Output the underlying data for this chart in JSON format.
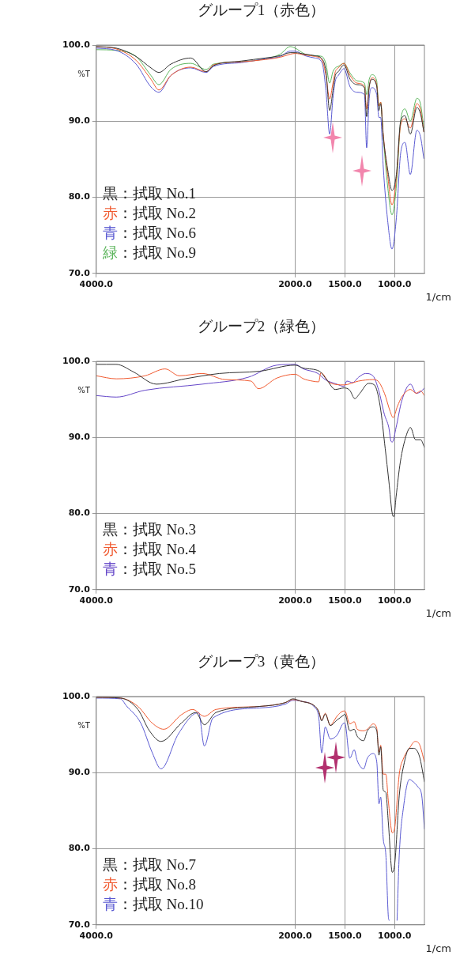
{
  "chart_data": [
    {
      "type": "line",
      "title": "グループ1（赤色）",
      "xlabel": "1/cm",
      "ylabel": "%T",
      "xlim": [
        4000,
        700
      ],
      "xticks": [
        {
          "value": 4000,
          "label": "4000.0"
        },
        {
          "value": 2000,
          "label": "2000.0"
        },
        {
          "value": 1500,
          "label": "1500.0"
        },
        {
          "value": 1000,
          "label": "1000.0"
        }
      ],
      "ylim": [
        70,
        100
      ],
      "yticks": [
        {
          "value": 70,
          "label": "70.0"
        },
        {
          "value": 80,
          "label": "80.0"
        },
        {
          "value": 90,
          "label": "90.0"
        },
        {
          "value": 100,
          "label": "100.0"
        }
      ],
      "grid": true,
      "legend": "bottom left",
      "series": [
        {
          "name": "黒：拭取 No.1",
          "color": "#333333",
          "x": [
            4000,
            3800,
            3600,
            3450,
            3370,
            3250,
            3050,
            2895,
            2820,
            2540,
            2300,
            2150,
            2050,
            2000,
            1900,
            1800,
            1730,
            1690,
            1653,
            1620,
            1596,
            1566,
            1509,
            1447,
            1377,
            1303,
            1281,
            1255,
            1228,
            1180,
            1158,
            1140,
            1114,
            1070,
            1026,
            982,
            939,
            895,
            842,
            776,
            740,
            706
          ],
          "values": [
            99.8,
            99.6,
            98.5,
            97.0,
            96.4,
            97.5,
            98.3,
            96.5,
            97.3,
            97.9,
            98.3,
            98.6,
            99.0,
            99.0,
            98.8,
            98.6,
            98.2,
            96.5,
            91.4,
            94.0,
            96.0,
            96.5,
            97.4,
            95.5,
            94.8,
            94.4,
            90.6,
            94.5,
            95.5,
            94.6,
            91.4,
            92.3,
            88.0,
            83.7,
            80.9,
            83.0,
            90.0,
            90.7,
            88.3,
            91.8,
            91.0,
            88.6
          ]
        },
        {
          "name": "赤：拭取 No.2",
          "color": "#f05a30",
          "x": [
            4000,
            3800,
            3600,
            3450,
            3370,
            3250,
            3050,
            2895,
            2820,
            2540,
            2300,
            2150,
            2050,
            2000,
            1900,
            1800,
            1730,
            1690,
            1653,
            1620,
            1596,
            1566,
            1509,
            1447,
            1377,
            1303,
            1281,
            1255,
            1228,
            1180,
            1158,
            1140,
            1114,
            1070,
            1026,
            982,
            939,
            895,
            842,
            776,
            740,
            706
          ],
          "values": [
            99.8,
            99.5,
            98.0,
            95.5,
            94.1,
            96.0,
            97.1,
            96.5,
            97.4,
            97.8,
            98.1,
            98.4,
            98.8,
            98.9,
            98.7,
            98.5,
            98.0,
            96.0,
            92.9,
            95.0,
            96.5,
            97.0,
            97.6,
            96.0,
            95.0,
            94.6,
            91.6,
            94.6,
            95.7,
            94.8,
            92.0,
            92.5,
            88.3,
            83.0,
            79.0,
            82.5,
            89.5,
            90.3,
            89.1,
            92.3,
            91.5,
            88.6
          ]
        },
        {
          "name": "青：拭取 No.6",
          "color": "#5a5ad2",
          "x": [
            4000,
            3800,
            3600,
            3450,
            3370,
            3250,
            3050,
            2895,
            2820,
            2540,
            2300,
            2150,
            2050,
            2000,
            1900,
            1800,
            1730,
            1690,
            1653,
            1620,
            1596,
            1566,
            1509,
            1447,
            1377,
            1303,
            1281,
            1255,
            1228,
            1180,
            1158,
            1140,
            1114,
            1070,
            1026,
            982,
            939,
            895,
            842,
            776,
            740,
            706
          ],
          "values": [
            99.6,
            99.3,
            97.5,
            94.5,
            93.8,
            96.0,
            97.0,
            96.4,
            97.2,
            97.7,
            98.2,
            98.5,
            99.2,
            99.2,
            98.6,
            98.3,
            97.7,
            94.0,
            88.3,
            93.0,
            95.3,
            96.0,
            96.9,
            94.5,
            93.8,
            93.5,
            86.5,
            93.0,
            94.4,
            93.5,
            90.5,
            90.5,
            84.0,
            77.0,
            73.2,
            77.3,
            85.8,
            87.2,
            83.0,
            88.8,
            88.0,
            85.1
          ]
        },
        {
          "name": "緑：拭取 No.9",
          "color": "#5ab45a",
          "x": [
            4000,
            3800,
            3600,
            3450,
            3370,
            3250,
            3050,
            2895,
            2820,
            2540,
            2300,
            2150,
            2050,
            2000,
            1900,
            1800,
            1730,
            1690,
            1653,
            1620,
            1596,
            1566,
            1509,
            1447,
            1377,
            1303,
            1281,
            1255,
            1228,
            1180,
            1158,
            1140,
            1114,
            1070,
            1026,
            982,
            939,
            895,
            842,
            776,
            740,
            706
          ],
          "values": [
            99.4,
            99.3,
            98.5,
            96.0,
            94.8,
            96.8,
            97.6,
            96.8,
            97.5,
            97.8,
            98.2,
            98.8,
            99.8,
            99.6,
            98.8,
            98.6,
            98.5,
            97.5,
            95.0,
            96.5,
            97.0,
            97.2,
            97.6,
            96.3,
            95.3,
            95.0,
            93.5,
            95.5,
            96.1,
            95.3,
            92.0,
            92.5,
            88.0,
            81.5,
            77.7,
            81.5,
            90.0,
            91.6,
            90.0,
            93.0,
            92.3,
            89.1
          ]
        }
      ]
    },
    {
      "type": "line",
      "title": "グループ2（緑色）",
      "xlabel": "1/cm",
      "ylabel": "%T",
      "xlim": [
        4000,
        700
      ],
      "xticks": [
        {
          "value": 4000,
          "label": "4000.0"
        },
        {
          "value": 2000,
          "label": "2000.0"
        },
        {
          "value": 1500,
          "label": "1500.0"
        },
        {
          "value": 1000,
          "label": "1000.0"
        }
      ],
      "ylim": [
        70,
        100
      ],
      "yticks": [
        {
          "value": 70,
          "label": "70.0"
        },
        {
          "value": 80,
          "label": "80.0"
        },
        {
          "value": 90,
          "label": "90.0"
        },
        {
          "value": 100,
          "label": "100.0"
        }
      ],
      "grid": true,
      "legend": "bottom left",
      "series": [
        {
          "name": "黒：拭取 No.3",
          "color": "#333333",
          "x": [
            4000,
            3800,
            3625,
            3395,
            3107,
            2761,
            2357,
            2000,
            1916,
            1756,
            1683,
            1596,
            1509,
            1451,
            1400,
            1349,
            1262,
            1203,
            1145,
            1094,
            1058,
            1022,
            1007,
            985,
            942,
            884,
            840,
            789,
            738,
            700
          ],
          "values": [
            99.6,
            99.6,
            98.6,
            97.0,
            97.7,
            98.4,
            98.7,
            99.5,
            99.1,
            98.7,
            97.6,
            96.3,
            96.5,
            96.2,
            95.1,
            95.8,
            97.1,
            96.9,
            94.1,
            88.5,
            84.3,
            79.9,
            79.6,
            82.2,
            86.8,
            90.2,
            91.3,
            89.7,
            89.7,
            88.7
          ]
        },
        {
          "name": "赤：拭取 No.4",
          "color": "#f05a30",
          "x": [
            4000,
            3798,
            3510,
            3308,
            3164,
            2934,
            2703,
            2444,
            2369,
            2184,
            2000,
            1916,
            1828,
            1763,
            1741,
            1654,
            1509,
            1363,
            1218,
            1167,
            1102,
            1044,
            1015,
            971,
            928,
            840,
            782,
            738,
            700
          ],
          "values": [
            98.1,
            97.7,
            98.1,
            99.0,
            98.1,
            98.4,
            97.6,
            97.4,
            96.4,
            97.8,
            98.3,
            97.7,
            97.4,
            97.3,
            98.5,
            97.2,
            96.9,
            97.4,
            97.6,
            97.4,
            95.8,
            93.4,
            92.6,
            94.1,
            95.3,
            96.3,
            95.8,
            96.1,
            95.5
          ]
        },
        {
          "name": "青：拭取 No.5",
          "color": "#6446c8",
          "x": [
            4000,
            3798,
            3510,
            2934,
            2473,
            2184,
            2000,
            1916,
            1770,
            1698,
            1581,
            1509,
            1480,
            1422,
            1363,
            1291,
            1218,
            1160,
            1102,
            1058,
            1036,
            1022,
            985,
            928,
            840,
            782,
            738,
            700
          ],
          "values": [
            95.5,
            95.3,
            96.2,
            97.0,
            97.9,
            99.5,
            99.6,
            99.0,
            98.4,
            97.6,
            97.0,
            96.7,
            97.4,
            97.2,
            97.9,
            98.4,
            98.1,
            96.2,
            93.0,
            91.3,
            89.5,
            89.4,
            91.3,
            94.8,
            97.0,
            95.8,
            96.0,
            96.5
          ]
        }
      ]
    },
    {
      "type": "line",
      "title": "グループ3（黄色）",
      "xlabel": "1/cm",
      "ylabel": "%T",
      "xlim": [
        4000,
        700
      ],
      "xticks": [
        {
          "value": 4000,
          "label": "4000.0"
        },
        {
          "value": 2000,
          "label": "2000.0"
        },
        {
          "value": 1500,
          "label": "1500.0"
        },
        {
          "value": 1000,
          "label": "1000.0"
        }
      ],
      "ylim": [
        70,
        100
      ],
      "yticks": [
        {
          "value": 70,
          "label": "70.0"
        },
        {
          "value": 80,
          "label": "80.0"
        },
        {
          "value": 90,
          "label": "90.0"
        },
        {
          "value": 100,
          "label": "100.0"
        }
      ],
      "grid": true,
      "legend": "bottom left",
      "series": [
        {
          "name": "黒：拭取 No.7",
          "color": "#333333",
          "x": [
            4000,
            3756,
            3581,
            3465,
            3349,
            3145,
            3000,
            2913,
            2797,
            2360,
            2099,
            2023,
            1945,
            1799,
            1762,
            1733,
            1697,
            1646,
            1580,
            1509,
            1500,
            1450,
            1406,
            1376,
            1311,
            1274,
            1216,
            1179,
            1157,
            1140,
            1114,
            1088,
            1063,
            1023,
            997,
            953,
            909,
            851,
            808,
            749,
            700
          ],
          "values": [
            99.9,
            99.8,
            98.3,
            95.5,
            94.1,
            96.5,
            97.9,
            96.3,
            97.9,
            98.7,
            99.2,
            99.7,
            99.4,
            98.7,
            98.0,
            96.8,
            97.7,
            96.2,
            96.9,
            97.6,
            97.7,
            95.5,
            95.7,
            94.8,
            94.2,
            95.5,
            96.0,
            95.5,
            92.3,
            93.4,
            87.7,
            87.4,
            83.5,
            76.9,
            78.2,
            87.0,
            90.9,
            93.2,
            93.2,
            92.1,
            88.8
          ]
        },
        {
          "name": "赤：拭取 No.8",
          "color": "#f05a30",
          "x": [
            4000,
            3756,
            3581,
            3436,
            3320,
            3145,
            3029,
            2913,
            2797,
            2360,
            2099,
            2023,
            1945,
            1799,
            1762,
            1733,
            1697,
            1646,
            1624,
            1580,
            1509,
            1500,
            1450,
            1406,
            1376,
            1311,
            1274,
            1216,
            1179,
            1157,
            1140,
            1114,
            1088,
            1063,
            1023,
            997,
            953,
            909,
            851,
            794,
            749,
            700
          ],
          "values": [
            99.9,
            99.8,
            98.7,
            96.5,
            95.7,
            97.6,
            98.3,
            97.4,
            98.3,
            98.7,
            99.2,
            99.6,
            99.4,
            98.7,
            98.0,
            96.9,
            97.8,
            96.2,
            96.5,
            97.4,
            98.1,
            98.1,
            96.4,
            96.7,
            95.7,
            95.5,
            95.7,
            96.4,
            95.8,
            92.7,
            93.6,
            89.8,
            89.8,
            86.3,
            82.1,
            82.9,
            89.8,
            91.9,
            93.2,
            94.1,
            93.7,
            91.4
          ]
        },
        {
          "name": "青：拭取 No.10",
          "color": "#5a5ad2",
          "x": [
            4000,
            3756,
            3698,
            3552,
            3436,
            3349,
            3174,
            2971,
            2913,
            2826,
            2360,
            2099,
            2023,
            1945,
            1799,
            1762,
            1733,
            1697,
            1646,
            1580,
            1509,
            1500,
            1450,
            1406,
            1376,
            1311,
            1274,
            1216,
            1179,
            1157,
            1140,
            1114,
            1088,
            1063,
            1055,
            1020,
            975,
            953,
            909,
            851,
            822,
            764,
            727,
            700
          ],
          "values": [
            99.8,
            99.7,
            98.8,
            96.5,
            92.6,
            90.5,
            95.1,
            97.9,
            93.5,
            97.2,
            98.5,
            99.0,
            99.5,
            99.4,
            98.5,
            97.2,
            92.6,
            96.0,
            94.4,
            94.9,
            96.5,
            96.5,
            91.9,
            93.0,
            91.6,
            90.5,
            91.9,
            92.5,
            91.4,
            85.9,
            86.8,
            81.3,
            79.2,
            71.1,
            70.6,
            null,
            70.6,
            79.2,
            85.6,
            89.1,
            88.9,
            88.1,
            87.0,
            82.6
          ]
        }
      ]
    }
  ]
}
